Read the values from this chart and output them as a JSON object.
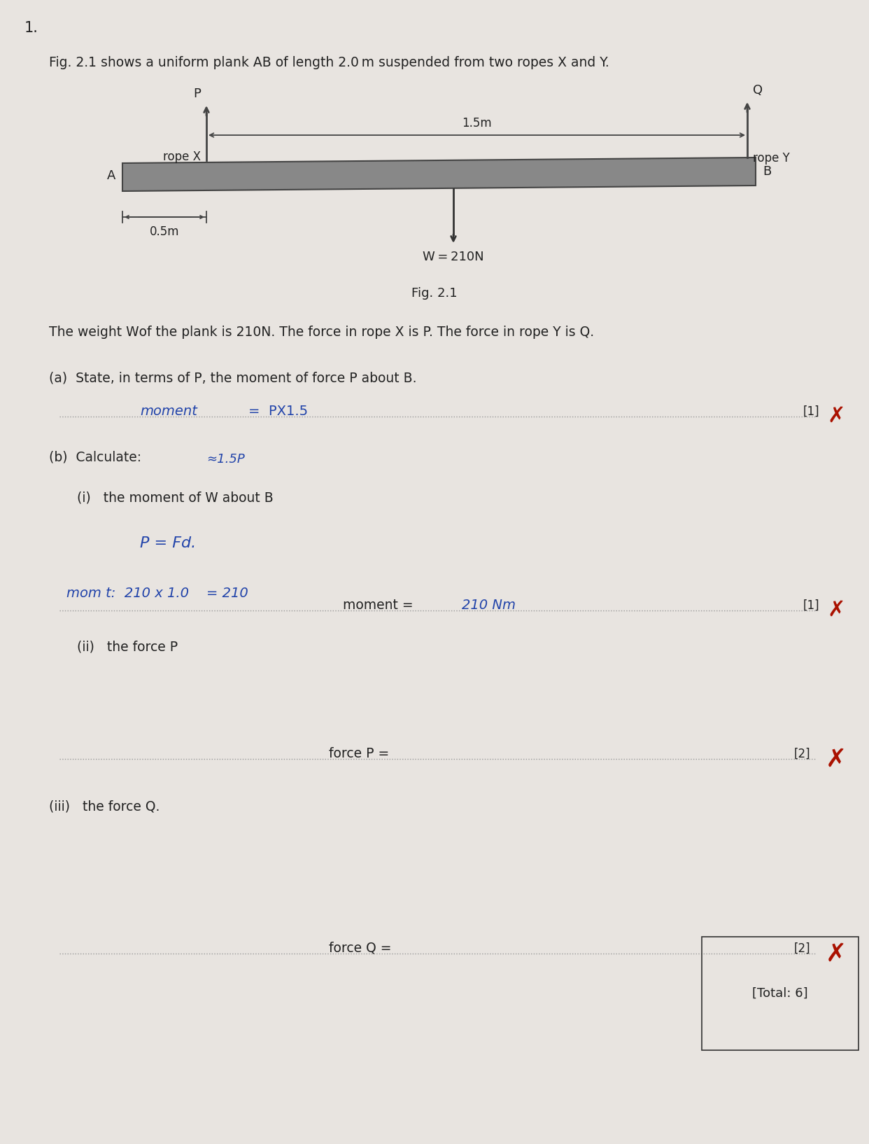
{
  "bg_color": "#e8e4e0",
  "page_number": "1.",
  "fig_caption": "Fig. 2.1 shows a uniform plank AB of length 2.0 m suspended from two ropes X and Y.",
  "fig_label": "Fig. 2.1",
  "weight_label": "W = 210N",
  "distance_label_15": "1.5m",
  "distance_label_05": "0.5m",
  "rope_x_label": "rope X",
  "rope_y_label": "rope Y",
  "label_P": "P",
  "label_Q": "Q",
  "label_A": "A",
  "label_B": "B",
  "description": "The weight W​of the plank is 210N. The force in rope X is P. The force in rope Y is Q.",
  "part_a_label": "(a)  State, in terms of P, the moment of force P about B.",
  "part_a_mark": "[1]",
  "part_b_label": "(b)  Calculate:",
  "part_bi_label": "(i)   the moment of W about B",
  "part_bi_mark": "[1]",
  "part_bii_label": "(ii)   the force P",
  "part_bii_answer_label": "force P =",
  "part_bii_mark": "[2]",
  "part_biii_label": "(iii)   the force Q.",
  "part_biii_answer_label": "force Q =",
  "part_biii_mark": "[2]",
  "total_mark": "[Total: 6]",
  "cross_color": "#aa1100",
  "handwriting_color": "#2244aa",
  "text_color": "#222222",
  "dotted_line_color": "#999999",
  "plank_color": "#888888",
  "plank_edge_color": "#444444",
  "rope_color": "#444444"
}
